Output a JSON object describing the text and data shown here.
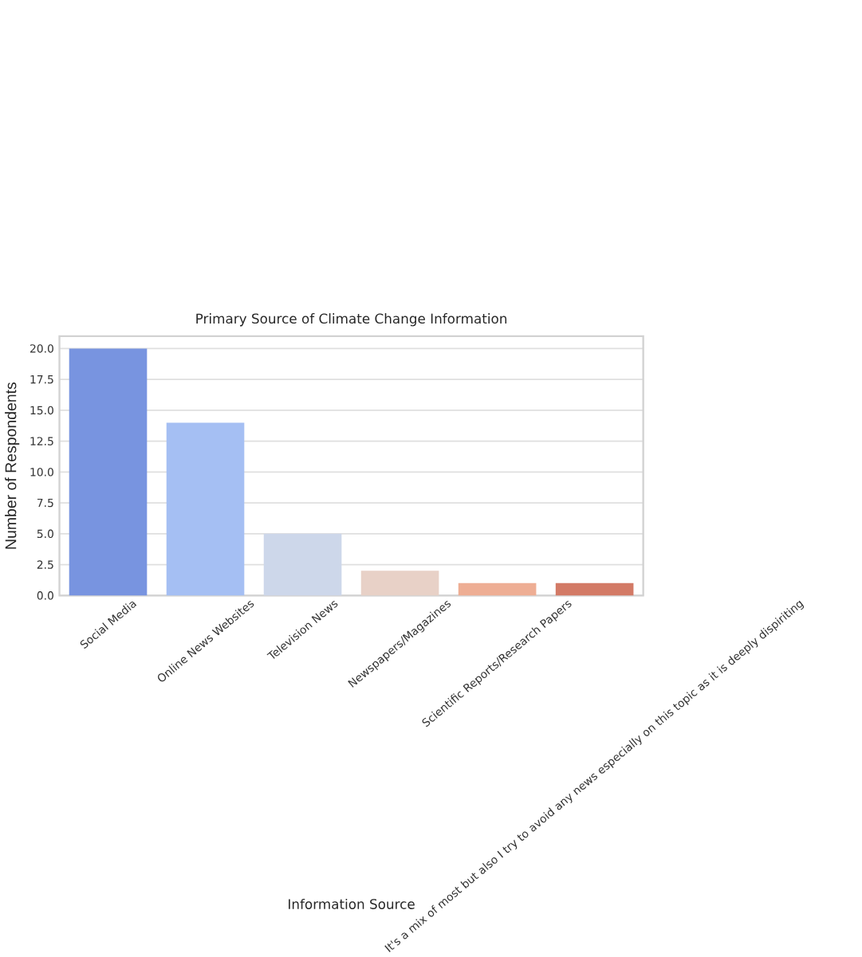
{
  "chart_data": {
    "type": "bar",
    "title": "Primary Source of Climate Change Information",
    "xlabel": "Information Source",
    "ylabel": "Number of Respondents",
    "categories": [
      "Social Media",
      "Online News Websites",
      "Television News",
      "Newspapers/Magazines",
      "Scientific Reports/Research Papers",
      "It's a mix of most but also I try to avoid any news especially on this topic as it is deeply dispiriting"
    ],
    "values": [
      20,
      14,
      5,
      2,
      1,
      1
    ],
    "colors": [
      "#7894e0",
      "#a5bff3",
      "#cdd7ea",
      "#e8d1c7",
      "#eeae94",
      "#d37a66"
    ],
    "ylim": [
      0,
      21
    ],
    "yticks": [
      {
        "value": 0,
        "label": "0.0"
      },
      {
        "value": 2.5,
        "label": "2.5"
      },
      {
        "value": 5,
        "label": "5.0"
      },
      {
        "value": 7.5,
        "label": "7.5"
      },
      {
        "value": 10,
        "label": "10.0"
      },
      {
        "value": 12.5,
        "label": "12.5"
      },
      {
        "value": 15,
        "label": "15.0"
      },
      {
        "value": 17.5,
        "label": "17.5"
      },
      {
        "value": 20,
        "label": "20.0"
      }
    ],
    "grid": "y"
  }
}
